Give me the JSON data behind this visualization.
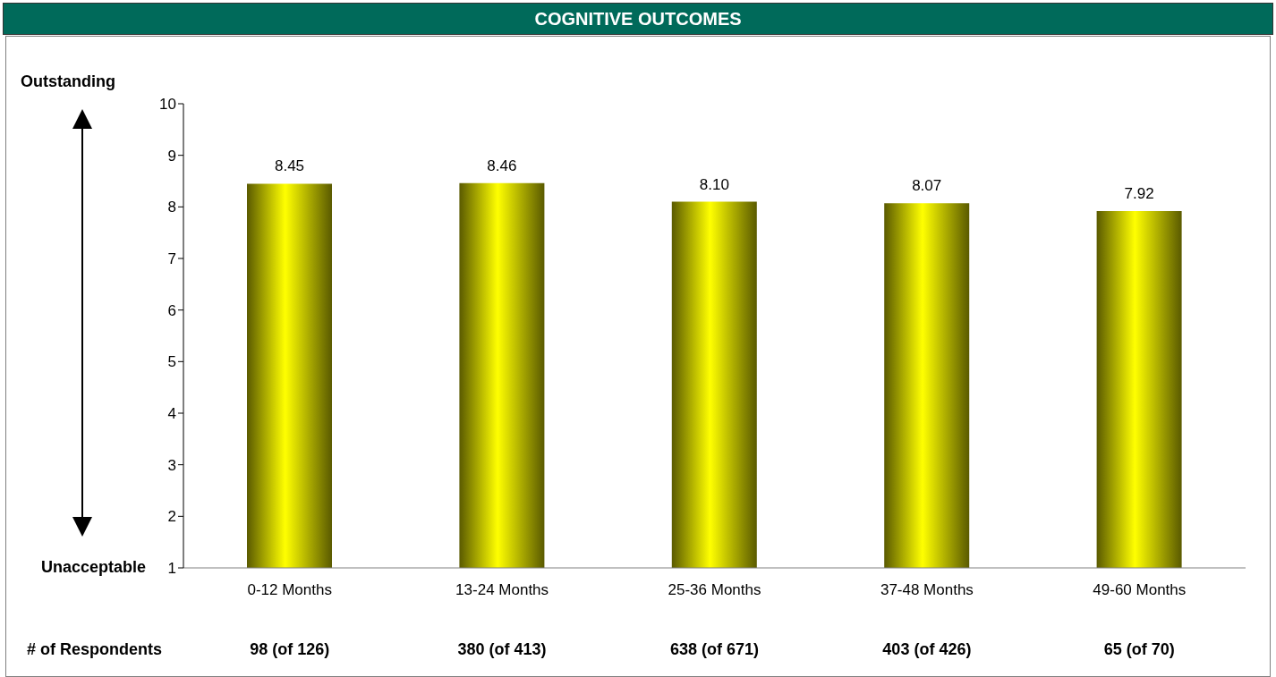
{
  "chart_data": {
    "type": "bar",
    "title": "COGNITIVE OUTCOMES",
    "categories": [
      "0-12 Months",
      "13-24 Months",
      "25-36 Months",
      "37-48 Months",
      "49-60 Months"
    ],
    "values": [
      8.45,
      8.46,
      8.1,
      8.07,
      7.92
    ],
    "value_labels": [
      "8.45",
      "8.46",
      "8.10",
      "8.07",
      "7.92"
    ],
    "color": "#ffff00",
    "ylim": [
      1,
      10
    ],
    "yticks": [
      1,
      2,
      3,
      4,
      5,
      6,
      7,
      8,
      9,
      10
    ],
    "grid": false,
    "legend": false,
    "annotations": [
      "Outstanding",
      "Unacceptable",
      "# of Respondents",
      "98 (of 126)",
      "380 (of 413)",
      "638 (of 671)",
      "403 (of 426)",
      "65 (of 70)"
    ]
  }
}
